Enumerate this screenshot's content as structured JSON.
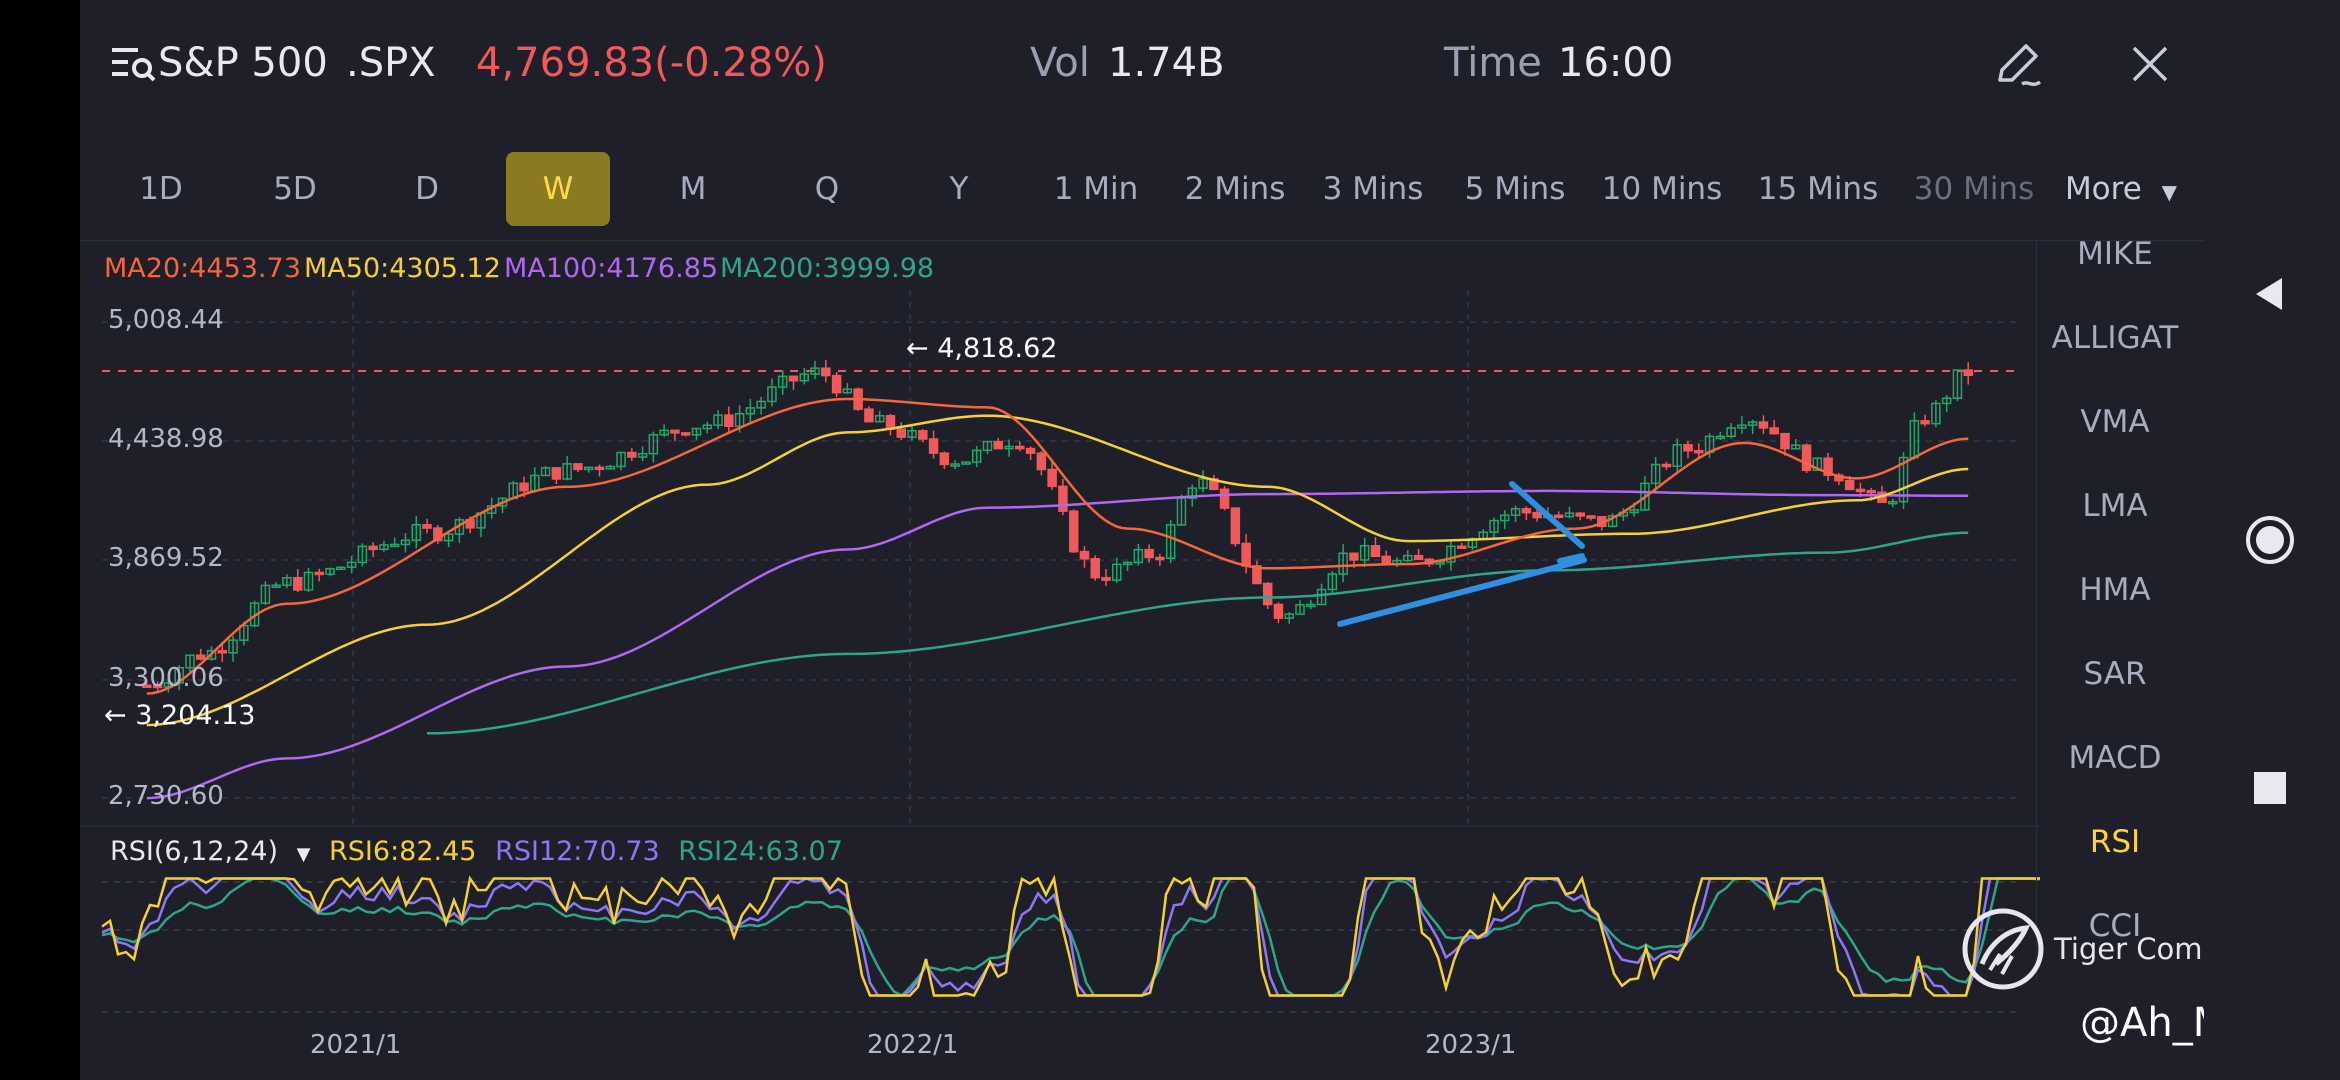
{
  "header": {
    "menu_icon": "menu-search-icon",
    "symbol_name": "S&P 500",
    "ticker": ".SPX",
    "price_change": "4,769.83(-0.28%)",
    "vol_label": "Vol",
    "vol_value": "1.74B",
    "time_label": "Time",
    "time_value": "16:00",
    "edit_icon": "pencil-icon",
    "close_icon": "close-icon"
  },
  "timeframes": [
    "1D",
    "5D",
    "D",
    "W",
    "M",
    "Q",
    "Y",
    "1 Min",
    "2 Mins",
    "3 Mins",
    "5 Mins",
    "10 Mins",
    "15 Mins",
    "30 Mins"
  ],
  "active_timeframe": "W",
  "more_label": "More",
  "indicator_menu": [
    "MIKE",
    "ALLIGAT",
    "VMA",
    "LMA",
    "HMA",
    "SAR",
    "MACD",
    "RSI",
    "CCI"
  ],
  "active_indicator": "RSI",
  "ma_legend": [
    {
      "label": "MA20:4453.73",
      "color": "#f4673c"
    },
    {
      "label": "MA50:4305.12",
      "color": "#f5d033"
    },
    {
      "label": "MA100:4176.85",
      "color": "#b068f0"
    },
    {
      "label": "MA200:3999.98",
      "color": "#2ea58a"
    }
  ],
  "rsi_legend": {
    "title": "RSI(6,12,24)",
    "items": [
      {
        "label": "RSI6:82.45",
        "color": "#f5d033"
      },
      {
        "label": "RSI12:70.73",
        "color": "#8c78f5"
      },
      {
        "label": "RSI24:63.07",
        "color": "#2ea58a"
      }
    ]
  },
  "y_ticks": [
    "5,008.44",
    "4,438.98",
    "3,869.52",
    "3,300.06",
    "2,730.60"
  ],
  "x_ticks": [
    "2021/1",
    "2022/1",
    "2023/1"
  ],
  "high_marker": "4,818.62",
  "low_marker": "3,204.13",
  "watermark": "Tiger Community",
  "watermark_handle": "@Ah_Meng",
  "colors": {
    "up": "#1fa86a",
    "down": "#f0585a",
    "background": "#1f1f29",
    "accent": "#ffd43b",
    "trendline": "#2f8fe0"
  },
  "nav_icons": [
    "back-icon",
    "home-icon",
    "recents-icon"
  ],
  "chart_data": {
    "type": "line",
    "x_range": [
      "2020/9",
      "2024/1"
    ],
    "ylim": [
      2730.6,
      5008.44
    ],
    "current_close": 4769.83,
    "reference_line": 4818.62,
    "series": [
      {
        "name": "MA20",
        "values": [
          [
            2020.75,
            3230
          ],
          [
            2021.0,
            3660
          ],
          [
            2021.5,
            4220
          ],
          [
            2022.0,
            4640
          ],
          [
            2022.25,
            4600
          ],
          [
            2022.5,
            4020
          ],
          [
            2022.75,
            3830
          ],
          [
            2023.0,
            3850
          ],
          [
            2023.3,
            4020
          ],
          [
            2023.6,
            4430
          ],
          [
            2023.8,
            4260
          ],
          [
            2024.0,
            4450
          ]
        ]
      },
      {
        "name": "MA50",
        "values": [
          [
            2020.75,
            3080
          ],
          [
            2021.25,
            3560
          ],
          [
            2021.75,
            4230
          ],
          [
            2022.0,
            4480
          ],
          [
            2022.25,
            4560
          ],
          [
            2022.75,
            4220
          ],
          [
            2023.0,
            3960
          ],
          [
            2023.4,
            3995
          ],
          [
            2023.8,
            4155
          ],
          [
            2024.0,
            4305
          ]
        ]
      },
      {
        "name": "MA100",
        "values": [
          [
            2020.75,
            2730
          ],
          [
            2021.0,
            2920
          ],
          [
            2021.5,
            3360
          ],
          [
            2022.0,
            3920
          ],
          [
            2022.25,
            4120
          ],
          [
            2022.75,
            4185
          ],
          [
            2023.25,
            4200
          ],
          [
            2023.75,
            4180
          ],
          [
            2024.0,
            4177
          ]
        ]
      },
      {
        "name": "MA200",
        "values": [
          [
            2021.25,
            3040
          ],
          [
            2022.0,
            3420
          ],
          [
            2022.75,
            3690
          ],
          [
            2023.25,
            3820
          ],
          [
            2023.75,
            3905
          ],
          [
            2024.0,
            4000
          ]
        ]
      }
    ]
  }
}
